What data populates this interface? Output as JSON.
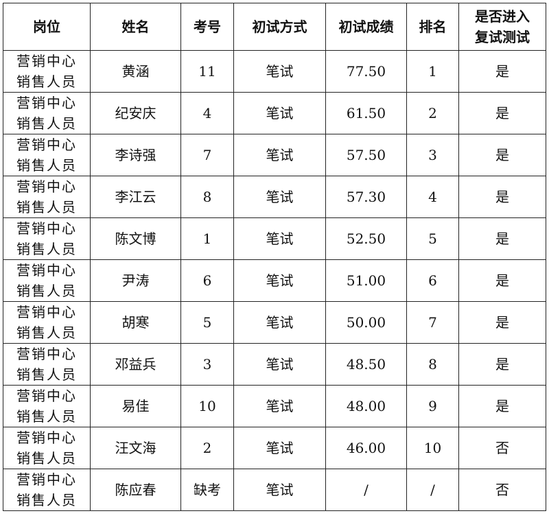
{
  "headers": [
    "岗位",
    "姓名",
    "考号",
    "初试方式",
    "初试成绩",
    "排名",
    "是否进入复试测试"
  ],
  "rows": [
    {
      "position_line1": "营销中心",
      "position_line2": "销售人员",
      "name": "黄涵",
      "exam_no": "11",
      "method": "笔试",
      "score": "77.50",
      "rank": "1",
      "advance": "是"
    },
    {
      "position_line1": "营销中心",
      "position_line2": "销售人员",
      "name": "纪安庆",
      "exam_no": "4",
      "method": "笔试",
      "score": "61.50",
      "rank": "2",
      "advance": "是"
    },
    {
      "position_line1": "营销中心",
      "position_line2": "销售人员",
      "name": "李诗强",
      "exam_no": "7",
      "method": "笔试",
      "score": "57.50",
      "rank": "3",
      "advance": "是"
    },
    {
      "position_line1": "营销中心",
      "position_line2": "销售人员",
      "name": "李江云",
      "exam_no": "8",
      "method": "笔试",
      "score": "57.30",
      "rank": "4",
      "advance": "是"
    },
    {
      "position_line1": "营销中心",
      "position_line2": "销售人员",
      "name": "陈文博",
      "exam_no": "1",
      "method": "笔试",
      "score": "52.50",
      "rank": "5",
      "advance": "是"
    },
    {
      "position_line1": "营销中心",
      "position_line2": "销售人员",
      "name": "尹涛",
      "exam_no": "6",
      "method": "笔试",
      "score": "51.00",
      "rank": "6",
      "advance": "是"
    },
    {
      "position_line1": "营销中心",
      "position_line2": "销售人员",
      "name": "胡寒",
      "exam_no": "5",
      "method": "笔试",
      "score": "50.00",
      "rank": "7",
      "advance": "是"
    },
    {
      "position_line1": "营销中心",
      "position_line2": "销售人员",
      "name": "邓益兵",
      "exam_no": "3",
      "method": "笔试",
      "score": "48.50",
      "rank": "8",
      "advance": "是"
    },
    {
      "position_line1": "营销中心",
      "position_line2": "销售人员",
      "name": "易佳",
      "exam_no": "10",
      "method": "笔试",
      "score": "48.00",
      "rank": "9",
      "advance": "是"
    },
    {
      "position_line1": "营销中心",
      "position_line2": "销售人员",
      "name": "汪文海",
      "exam_no": "2",
      "method": "笔试",
      "score": "46.00",
      "rank": "10",
      "advance": "否"
    },
    {
      "position_line1": "营销中心",
      "position_line2": "销售人员",
      "name": "陈应春",
      "exam_no": "缺考",
      "method": "笔试",
      "score": "/",
      "rank": "/",
      "advance": "否"
    }
  ]
}
